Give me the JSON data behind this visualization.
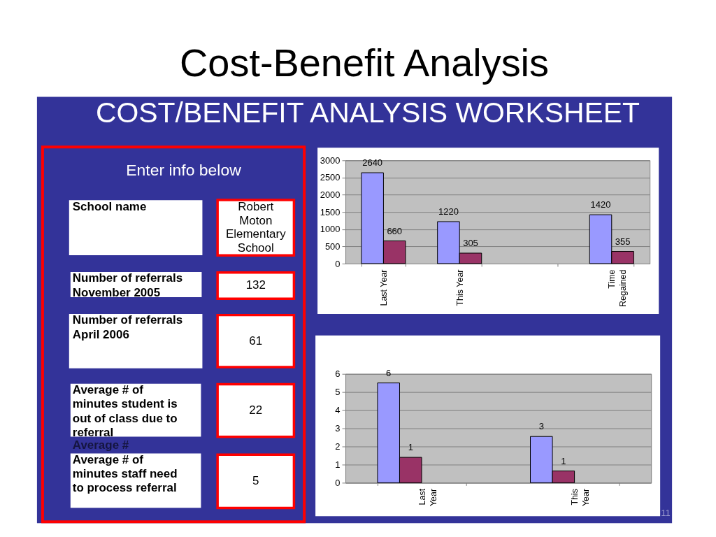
{
  "chart_data": [
    {
      "type": "other",
      "title": "Cost-Benefit Analysis",
      "subtitle": "COST/BENEFIT ANALYSIS WORKSHEET",
      "annotations": [
        "Enter info below",
        "School name",
        "Robert Moton Elementary School",
        "Number of referrals November 2005",
        "132",
        "Number of referrals April 2006",
        "61",
        "Average #  of minutes student is out of class due to referral",
        "22",
        "Average #",
        "Average # of minutes staff need to process referral",
        "5",
        "11"
      ]
    },
    {
      "type": "bar",
      "categories": [
        "Last Year",
        "This Year",
        null,
        "Time Regained"
      ],
      "series": [
        {
          "color": "#9999ff",
          "values": [
            2640,
            1220,
            null,
            1420
          ]
        },
        {
          "color": "#993366",
          "values": [
            660,
            305,
            null,
            355
          ]
        }
      ],
      "data_labels": true,
      "ylim": [
        0,
        3000
      ],
      "yticks": [
        0,
        500,
        1000,
        1500,
        2000,
        2500,
        3000
      ],
      "grid": "y"
    },
    {
      "type": "bar",
      "categories": [
        "Last Year",
        "This Year"
      ],
      "series": [
        {
          "color": "#9999ff",
          "values": [
            5.5,
            2.55
          ],
          "value_labels": [
            "6",
            "3"
          ]
        },
        {
          "color": "#993366",
          "values": [
            1.4,
            0.65
          ],
          "value_labels": [
            "1",
            "1"
          ]
        }
      ],
      "ylim": [
        0,
        6
      ],
      "yticks": [
        0,
        1,
        2,
        3,
        4,
        5,
        6
      ],
      "grid": "y"
    }
  ]
}
